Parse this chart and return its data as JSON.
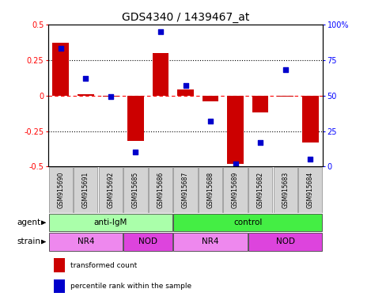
{
  "title": "GDS4340 / 1439467_at",
  "samples": [
    "GSM915690",
    "GSM915691",
    "GSM915692",
    "GSM915685",
    "GSM915686",
    "GSM915687",
    "GSM915688",
    "GSM915689",
    "GSM915682",
    "GSM915683",
    "GSM915684"
  ],
  "bar_values": [
    0.37,
    0.01,
    -0.01,
    -0.32,
    0.3,
    0.04,
    -0.04,
    -0.48,
    -0.12,
    -0.01,
    -0.33
  ],
  "percentile_values": [
    83,
    62,
    49,
    10,
    95,
    57,
    32,
    2,
    17,
    68,
    5
  ],
  "bar_color": "#cc0000",
  "dot_color": "#0000cc",
  "ylim_left": [
    -0.5,
    0.5
  ],
  "ylim_right": [
    0,
    100
  ],
  "yticks_left": [
    -0.5,
    -0.25,
    0.0,
    0.25,
    0.5
  ],
  "yticks_right": [
    0,
    25,
    50,
    75,
    100
  ],
  "ytick_labels_left": [
    "-0.5",
    "-0.25",
    "0",
    "0.25",
    "0.5"
  ],
  "ytick_labels_right": [
    "0",
    "25",
    "50",
    "75",
    "100%"
  ],
  "agent_groups": [
    {
      "label": "anti-IgM",
      "start": 0,
      "end": 5,
      "color": "#aaffaa"
    },
    {
      "label": "control",
      "start": 5,
      "end": 11,
      "color": "#44ee44"
    }
  ],
  "strain_groups": [
    {
      "label": "NR4",
      "start": 0,
      "end": 3,
      "color": "#ee88ee"
    },
    {
      "label": "NOD",
      "start": 3,
      "end": 5,
      "color": "#dd44dd"
    },
    {
      "label": "NR4",
      "start": 5,
      "end": 8,
      "color": "#ee88ee"
    },
    {
      "label": "NOD",
      "start": 8,
      "end": 11,
      "color": "#dd44dd"
    }
  ],
  "agent_label": "agent",
  "strain_label": "strain",
  "legend_bar_label": "transformed count",
  "legend_dot_label": "percentile rank within the sample",
  "bar_width": 0.65,
  "sample_bg_color": "#d3d3d3",
  "title_fontsize": 10,
  "tick_fontsize": 7,
  "label_fontsize": 7.5,
  "group_fontsize": 7.5,
  "sample_fontsize": 5.5
}
